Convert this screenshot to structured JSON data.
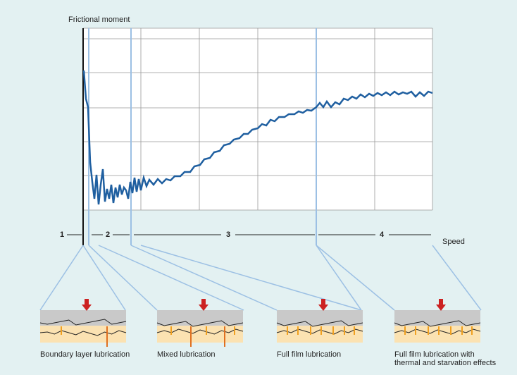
{
  "axes": {
    "y_label": "Frictional moment",
    "x_label": "Speed"
  },
  "zones": [
    "1",
    "2",
    "3",
    "4"
  ],
  "panels": [
    {
      "caption": "Boundary layer lubrication"
    },
    {
      "caption": "Mixed lubrication"
    },
    {
      "caption": "Full film lubrication"
    },
    {
      "caption": "Full film lubrication with thermal and starvation effects"
    }
  ]
}
